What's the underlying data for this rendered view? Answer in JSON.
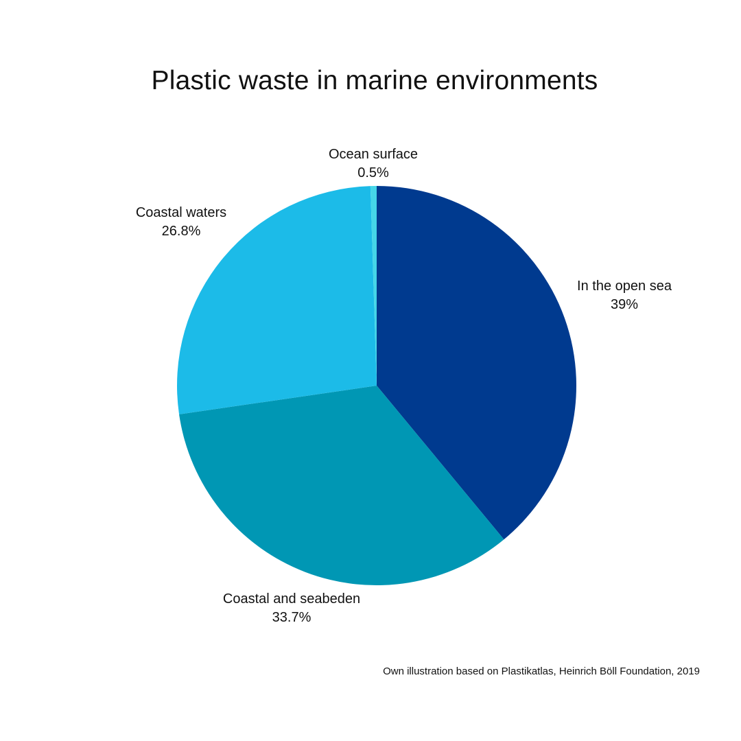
{
  "chart_data": {
    "type": "pie",
    "title": "Plastic waste in marine environments",
    "slices": [
      {
        "label": "In the open sea",
        "value_label": "39%",
        "value": 39.0,
        "color": "#003A8F"
      },
      {
        "label": "Coastal and seabeden",
        "value_label": "33.7%",
        "value": 33.7,
        "color": "#0097B4"
      },
      {
        "label": "Coastal waters",
        "value_label": "26.8%",
        "value": 26.8,
        "color": "#1CBBE8"
      },
      {
        "label": "Ocean surface",
        "value_label": "0.5%",
        "value": 0.5,
        "color": "#45D6E8"
      }
    ],
    "start_angle": "12 o'clock",
    "direction": "clockwise",
    "legend": "none, labels placed outside slices"
  },
  "footer": {
    "source": "Own illustration based on Plastikatlas, Heinrich Böll Foundation, 2019"
  }
}
